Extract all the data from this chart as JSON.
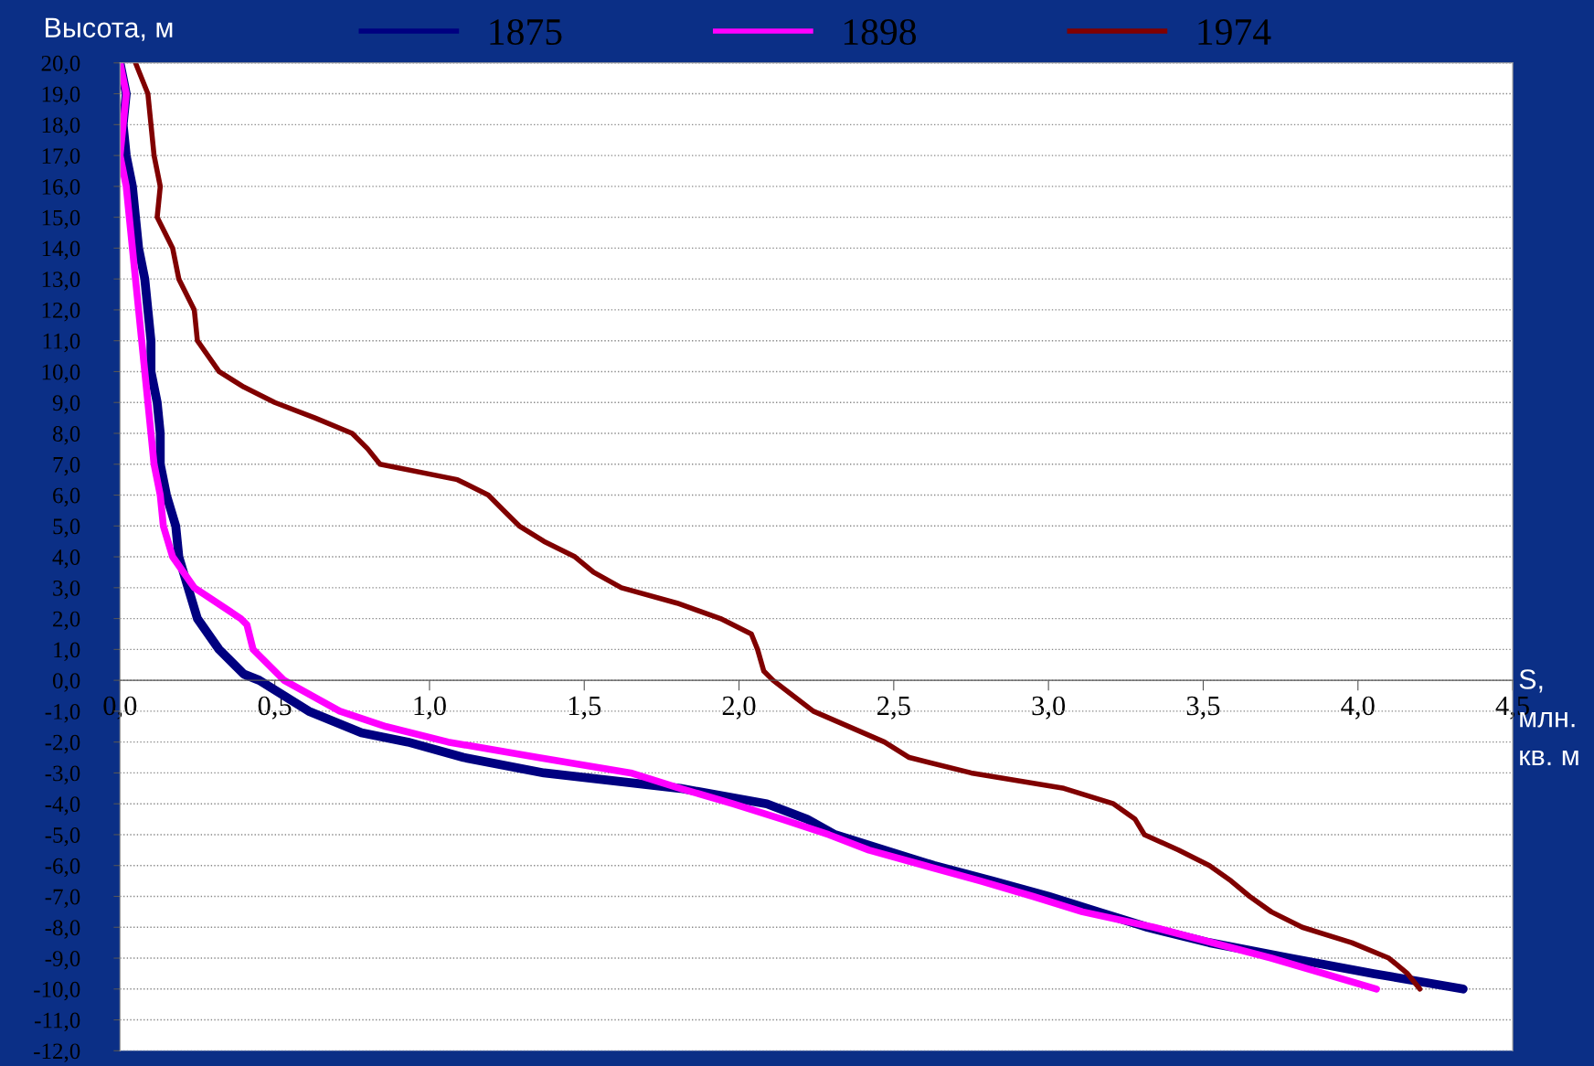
{
  "chart_data": {
    "type": "line",
    "xlabel": "S, млн. кв. м",
    "ylabel": "Высота, м",
    "series": [
      {
        "name": "1875",
        "color": "#000080",
        "x": [
          0.0,
          0.02,
          0.01,
          0.02,
          0.04,
          0.05,
          0.06,
          0.08,
          0.09,
          0.1,
          0.1,
          0.12,
          0.13,
          0.13,
          0.15,
          0.18,
          0.19,
          0.22,
          0.25,
          0.32,
          0.4,
          0.45,
          0.61,
          0.78,
          0.93,
          1.11,
          1.37,
          1.81,
          2.09,
          2.22,
          2.31,
          2.47,
          2.63,
          2.82,
          3.0,
          3.16,
          3.32,
          3.52,
          3.78,
          4.05,
          4.34
        ],
        "values": [
          20,
          19,
          18,
          17,
          16,
          15,
          14,
          13,
          12,
          11,
          10,
          9,
          8,
          7,
          6,
          5,
          4,
          3,
          2,
          1,
          0.2,
          0,
          -1,
          -1.7,
          -2,
          -2.5,
          -3,
          -3.5,
          -4,
          -4.5,
          -5,
          -5.5,
          -6,
          -6.5,
          -7,
          -7.5,
          -8,
          -8.5,
          -9,
          -9.5,
          -10
        ]
      },
      {
        "name": "1898",
        "color": "#ff00ff",
        "x": [
          0.0,
          0.02,
          0.01,
          0.0,
          0.02,
          0.03,
          0.04,
          0.05,
          0.06,
          0.07,
          0.08,
          0.09,
          0.1,
          0.11,
          0.13,
          0.14,
          0.17,
          0.24,
          0.39,
          0.41,
          0.43,
          0.53,
          0.71,
          0.86,
          1.06,
          1.35,
          1.65,
          1.81,
          1.98,
          2.14,
          2.29,
          2.42,
          2.6,
          2.78,
          2.95,
          3.11,
          3.34,
          3.72,
          4.06
        ],
        "values": [
          20,
          19,
          18,
          17,
          16,
          15,
          14,
          13,
          12,
          11,
          10,
          9,
          8,
          7,
          6,
          5,
          4,
          3,
          2,
          1.8,
          1,
          0,
          -1,
          -1.5,
          -2,
          -2.5,
          -3,
          -3.5,
          -4,
          -4.5,
          -5,
          -5.5,
          -6,
          -6.5,
          -7,
          -7.5,
          -8,
          -9,
          -10
        ]
      },
      {
        "name": "1974",
        "color": "#800000",
        "x": [
          0.05,
          0.09,
          0.1,
          0.11,
          0.13,
          0.12,
          0.17,
          0.19,
          0.24,
          0.25,
          0.32,
          0.4,
          0.5,
          0.63,
          0.75,
          0.8,
          0.84,
          1.09,
          1.19,
          1.24,
          1.29,
          1.37,
          1.47,
          1.53,
          1.62,
          1.8,
          1.94,
          2.04,
          2.06,
          2.08,
          2.11,
          2.24,
          2.47,
          2.55,
          2.75,
          3.05,
          3.21,
          3.28,
          3.31,
          3.42,
          3.52,
          3.59,
          3.65,
          3.72,
          3.82,
          3.98,
          4.1,
          4.16,
          4.2
        ],
        "values": [
          20,
          19,
          18,
          17,
          16,
          15,
          14,
          13,
          12,
          11,
          10,
          9.5,
          9,
          8.5,
          8,
          7.5,
          7,
          6.5,
          6,
          5.5,
          5,
          4.5,
          4,
          3.5,
          3,
          2.5,
          2,
          1.5,
          1,
          0.3,
          0,
          -1,
          -2,
          -2.5,
          -3,
          -3.5,
          -4,
          -4.5,
          -5,
          -5.5,
          -6,
          -6.5,
          -7,
          -7.5,
          -8,
          -8.5,
          -9,
          -9.5,
          -10
        ]
      }
    ],
    "xlim": [
      0,
      4.5
    ],
    "ylim": [
      -12,
      20
    ],
    "xticks": [
      {
        "value": 0,
        "label": "0,0"
      },
      {
        "value": 0.5,
        "label": "0,5"
      },
      {
        "value": 1.0,
        "label": "1,0"
      },
      {
        "value": 1.5,
        "label": "1,5"
      },
      {
        "value": 2.0,
        "label": "2,0"
      },
      {
        "value": 2.5,
        "label": "2,5"
      },
      {
        "value": 3.0,
        "label": "3,0"
      },
      {
        "value": 3.5,
        "label": "3,5"
      },
      {
        "value": 4.0,
        "label": "4,0"
      },
      {
        "value": 4.5,
        "label": "4,5"
      }
    ],
    "yticks": [
      {
        "value": 20,
        "label": "20,0"
      },
      {
        "value": 19,
        "label": "19,0"
      },
      {
        "value": 18,
        "label": "18,0"
      },
      {
        "value": 17,
        "label": "17,0"
      },
      {
        "value": 16,
        "label": "16,0"
      },
      {
        "value": 15,
        "label": "15,0"
      },
      {
        "value": 14,
        "label": "14,0"
      },
      {
        "value": 13,
        "label": "13,0"
      },
      {
        "value": 12,
        "label": "12,0"
      },
      {
        "value": 11,
        "label": "11,0"
      },
      {
        "value": 10,
        "label": "10,0"
      },
      {
        "value": 9,
        "label": "9,0"
      },
      {
        "value": 8,
        "label": "8,0"
      },
      {
        "value": 7,
        "label": "7,0"
      },
      {
        "value": 6,
        "label": "6,0"
      },
      {
        "value": 5,
        "label": "5,0"
      },
      {
        "value": 4,
        "label": "4,0"
      },
      {
        "value": 3,
        "label": "3,0"
      },
      {
        "value": 2,
        "label": "2,0"
      },
      {
        "value": 1,
        "label": "1,0"
      },
      {
        "value": 0,
        "label": "0,0"
      },
      {
        "value": -1,
        "label": "-1,0"
      },
      {
        "value": -2,
        "label": "-2,0"
      },
      {
        "value": -3,
        "label": "-3,0"
      },
      {
        "value": -4,
        "label": "-4,0"
      },
      {
        "value": -5,
        "label": "-5,0"
      },
      {
        "value": -6,
        "label": "-6,0"
      },
      {
        "value": -7,
        "label": "-7,0"
      },
      {
        "value": -8,
        "label": "-8,0"
      },
      {
        "value": -9,
        "label": "-9,0"
      },
      {
        "value": -10,
        "label": "-10,0"
      },
      {
        "value": -11,
        "label": "-11,0"
      },
      {
        "value": -12,
        "label": "-12,0"
      }
    ],
    "grid": "y",
    "legend": "top",
    "marker": "none",
    "line_style": "solid"
  }
}
